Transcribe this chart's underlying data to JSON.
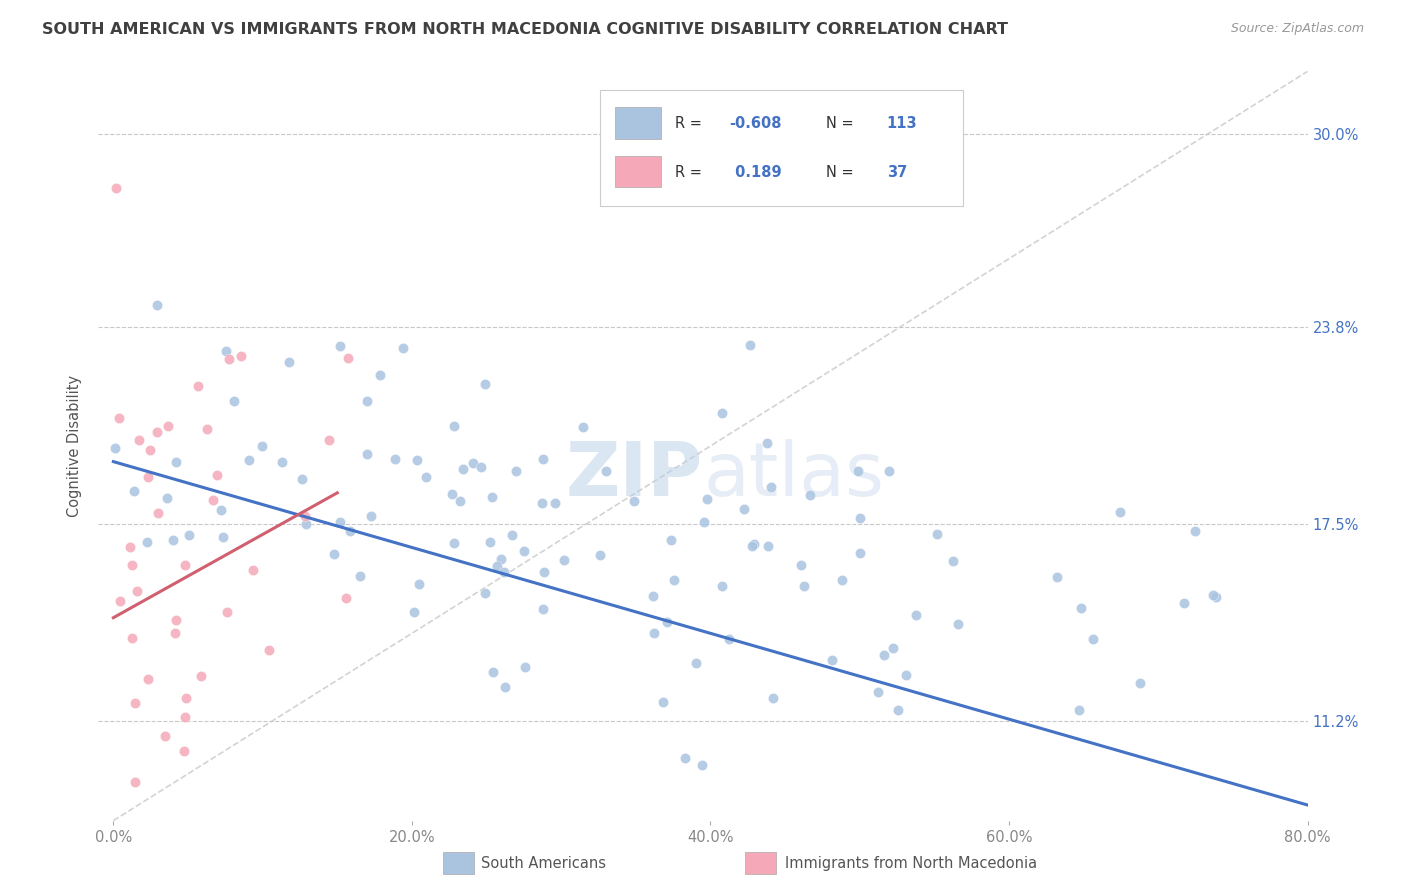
{
  "title": "SOUTH AMERICAN VS IMMIGRANTS FROM NORTH MACEDONIA COGNITIVE DISABILITY CORRELATION CHART",
  "source": "Source: ZipAtlas.com",
  "ylabel": "Cognitive Disability",
  "xlim": [
    -1.0,
    80.0
  ],
  "ylim": [
    8.0,
    32.0
  ],
  "yticks": [
    11.2,
    17.5,
    23.8,
    30.0
  ],
  "xticks": [
    0.0,
    20.0,
    40.0,
    60.0,
    80.0
  ],
  "xtick_labels": [
    "0.0%",
    "20.0%",
    "40.0%",
    "60.0%",
    "80.0%"
  ],
  "ytick_labels": [
    "11.2%",
    "17.5%",
    "23.8%",
    "30.0%"
  ],
  "blue_R": -0.608,
  "blue_N": 113,
  "pink_R": 0.189,
  "pink_N": 37,
  "blue_color": "#aac4e0",
  "pink_color": "#f4a8b8",
  "blue_line_color": "#4472c4",
  "pink_line_color": "#d06070",
  "ref_line_color": "#c8c8c8",
  "watermark": "ZIPatlas",
  "background_color": "#ffffff",
  "legend_label_blue": "South Americans",
  "legend_label_pink": "Immigrants from North Macedonia",
  "blue_trend_x0": 0.0,
  "blue_trend_y0": 19.5,
  "blue_trend_x1": 80.0,
  "blue_trend_y1": 8.5,
  "pink_trend_x0": 0.0,
  "pink_trend_y0": 14.5,
  "pink_trend_x1": 15.0,
  "pink_trend_y1": 18.5,
  "ref_x0": 0.0,
  "ref_y0": 8.0,
  "ref_x1": 80.0,
  "ref_y1": 32.0
}
